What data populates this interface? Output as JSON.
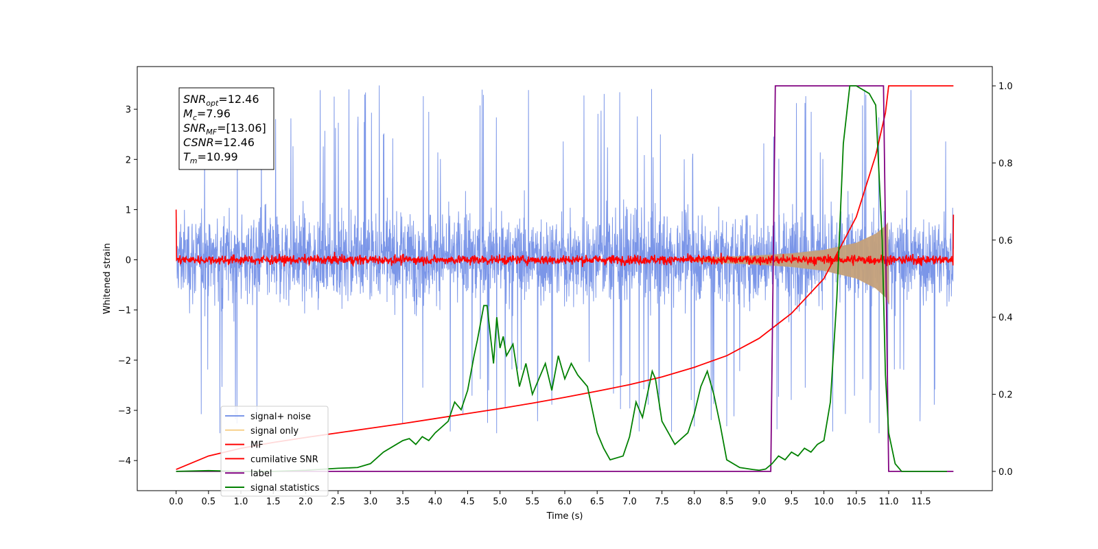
{
  "chart_data": {
    "type": "line",
    "xlabel": "Time (s)",
    "ylabel": "Whitened strain",
    "xlim": [
      -0.6,
      12.6
    ],
    "ylim_left": [
      -4.6,
      3.85
    ],
    "ylim_right": [
      -0.05,
      1.05
    ],
    "x_ticks": [
      "0.0",
      "0.5",
      "1.0",
      "1.5",
      "2.0",
      "2.5",
      "3.0",
      "3.5",
      "4.0",
      "4.5",
      "5.0",
      "5.5",
      "6.0",
      "6.5",
      "7.0",
      "7.5",
      "8.0",
      "8.5",
      "9.0",
      "9.5",
      "10.0",
      "10.5",
      "11.0",
      "11.5"
    ],
    "y_ticks_left": [
      "3",
      "2",
      "1",
      "0",
      "−1",
      "−2",
      "−3",
      "−4"
    ],
    "y_ticks_right": [
      "1.0",
      "0.8",
      "0.6",
      "0.4",
      "0.2",
      "0.0"
    ],
    "annotation": [
      {
        "base": "SNR",
        "sub": "opt",
        "value": "=12.46"
      },
      {
        "base": "M",
        "sub": "c",
        "value": "=7.96"
      },
      {
        "base": "SNR",
        "sub": "MF",
        "value": "=[13.06]"
      },
      {
        "base": "CSNR",
        "sub": "",
        "value": "=12.46"
      },
      {
        "base": "T",
        "sub": "m",
        "value": "=10.99"
      }
    ],
    "legend_position": "lower-left",
    "legend": [
      {
        "label": "signal+ noise",
        "color": "#7b96e8"
      },
      {
        "label": "signal only",
        "color": "#f7d08a"
      },
      {
        "label": "MF",
        "color": "#ff0000"
      },
      {
        "label": "cumilative SNR",
        "color": "#ff0000"
      },
      {
        "label": "label",
        "color": "#800080"
      },
      {
        "label": "signal statistics",
        "color": "#008000"
      }
    ],
    "series": [
      {
        "name": "signal+ noise",
        "axis": "left",
        "color": "#7b96e8",
        "note_shape": "dense noise band approx",
        "band": [
          -2.0,
          2.3
        ],
        "x_range": [
          0.0,
          12.0
        ]
      },
      {
        "name": "signal only",
        "axis": "left",
        "color": "#c4a07a",
        "chirp_envelope_x": [
          8.0,
          9.0,
          9.5,
          10.0,
          10.5,
          10.8,
          10.95,
          10.99
        ],
        "chirp_envelope_amp": [
          0.04,
          0.09,
          0.13,
          0.2,
          0.34,
          0.52,
          0.68,
          0.75
        ]
      },
      {
        "name": "MF",
        "axis": "left",
        "color": "#ff0000",
        "level": 0.0,
        "noise_amp": 0.13
      },
      {
        "name": "cumilative SNR",
        "axis": "right",
        "color": "#ff0000",
        "x": [
          0.0,
          0.5,
          1.0,
          1.5,
          2.0,
          2.5,
          3.0,
          3.5,
          4.0,
          4.5,
          5.0,
          5.5,
          6.0,
          6.5,
          7.0,
          7.5,
          8.0,
          8.5,
          9.0,
          9.5,
          10.0,
          10.5,
          10.8,
          10.95,
          11.0,
          12.0
        ],
        "y": [
          0.005,
          0.04,
          0.06,
          0.075,
          0.088,
          0.1,
          0.112,
          0.124,
          0.137,
          0.15,
          0.163,
          0.177,
          0.192,
          0.208,
          0.225,
          0.245,
          0.27,
          0.3,
          0.345,
          0.41,
          0.5,
          0.66,
          0.82,
          0.93,
          1.0,
          1.0
        ]
      },
      {
        "name": "label",
        "axis": "right",
        "color": "#800080",
        "x": [
          0.0,
          9.18,
          9.25,
          10.92,
          11.0,
          12.0
        ],
        "y": [
          0.0,
          0.0,
          1.0,
          1.0,
          0.0,
          0.0
        ]
      },
      {
        "name": "signal statistics",
        "axis": "right",
        "color": "#008000",
        "x": [
          0.0,
          0.5,
          1.0,
          1.5,
          2.0,
          2.5,
          2.8,
          3.0,
          3.2,
          3.4,
          3.5,
          3.6,
          3.7,
          3.8,
          3.9,
          4.0,
          4.2,
          4.3,
          4.4,
          4.5,
          4.6,
          4.65,
          4.75,
          4.8,
          4.9,
          4.95,
          5.0,
          5.05,
          5.1,
          5.2,
          5.3,
          5.4,
          5.5,
          5.7,
          5.8,
          5.9,
          6.0,
          6.1,
          6.2,
          6.35,
          6.4,
          6.5,
          6.6,
          6.7,
          6.9,
          7.0,
          7.1,
          7.2,
          7.35,
          7.4,
          7.5,
          7.7,
          7.9,
          8.0,
          8.1,
          8.2,
          8.3,
          8.4,
          8.5,
          8.7,
          8.9,
          9.0,
          9.1,
          9.2,
          9.3,
          9.4,
          9.5,
          9.6,
          9.7,
          9.8,
          9.9,
          10.0,
          10.1,
          10.2,
          10.3,
          10.4,
          10.5,
          10.6,
          10.7,
          10.8,
          10.9,
          10.95,
          11.0,
          11.1,
          11.2,
          11.5,
          11.9
        ],
        "y": [
          0.0,
          0.002,
          0.0,
          0.0,
          0.003,
          0.008,
          0.01,
          0.02,
          0.05,
          0.07,
          0.08,
          0.085,
          0.07,
          0.09,
          0.08,
          0.1,
          0.13,
          0.18,
          0.16,
          0.21,
          0.3,
          0.34,
          0.43,
          0.43,
          0.28,
          0.4,
          0.32,
          0.35,
          0.3,
          0.33,
          0.22,
          0.28,
          0.2,
          0.28,
          0.21,
          0.3,
          0.24,
          0.28,
          0.25,
          0.22,
          0.18,
          0.1,
          0.06,
          0.03,
          0.04,
          0.09,
          0.18,
          0.14,
          0.26,
          0.24,
          0.13,
          0.07,
          0.1,
          0.15,
          0.22,
          0.26,
          0.2,
          0.12,
          0.03,
          0.01,
          0.005,
          0.003,
          0.006,
          0.02,
          0.04,
          0.03,
          0.05,
          0.04,
          0.06,
          0.05,
          0.07,
          0.08,
          0.18,
          0.45,
          0.85,
          1.0,
          1.0,
          0.99,
          0.98,
          0.95,
          0.6,
          0.25,
          0.1,
          0.02,
          0.0,
          0.0,
          0.0
        ]
      }
    ]
  }
}
